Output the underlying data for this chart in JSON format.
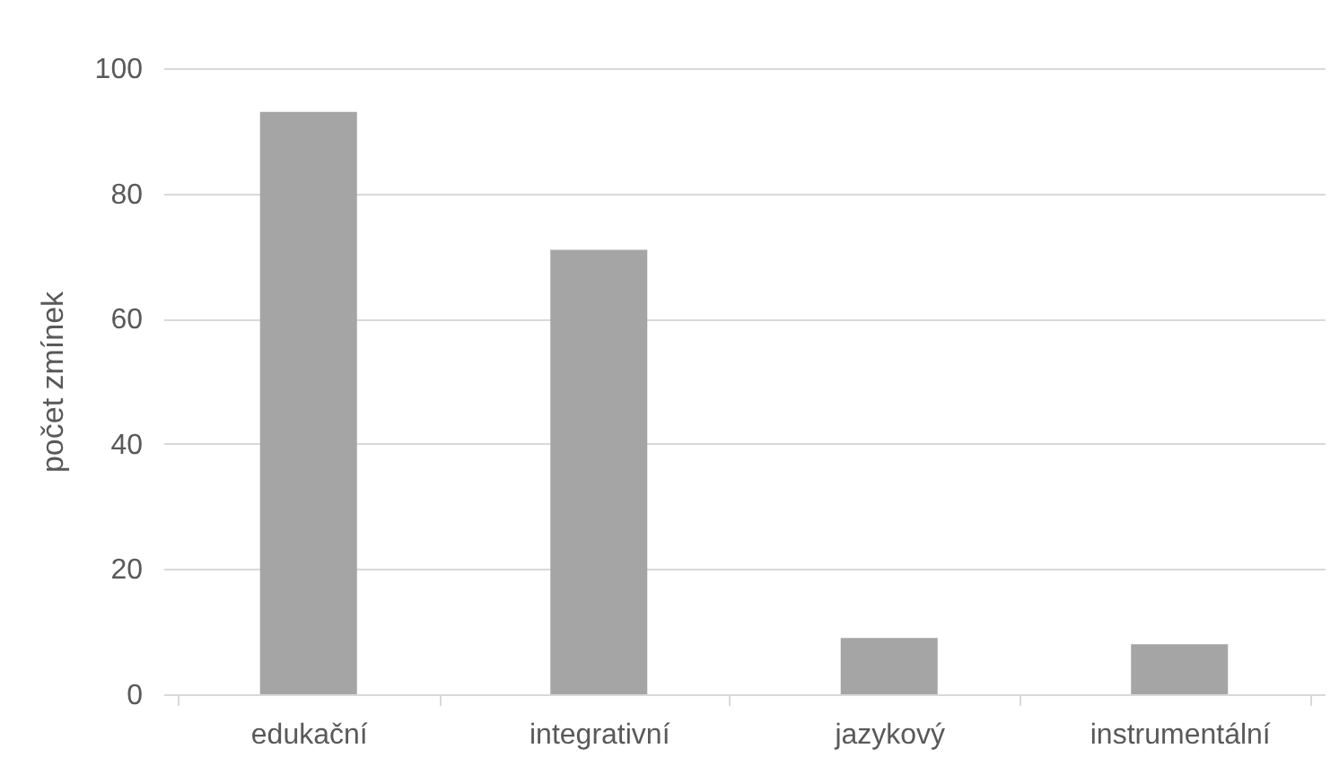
{
  "chart_data": {
    "type": "bar",
    "ylabel": "počet zmínek",
    "categories": [
      "edukační",
      "integrativní",
      "jazykový",
      "instrumentální"
    ],
    "values": [
      93,
      71,
      9,
      8
    ],
    "color": "#a5a5a5",
    "ylim": [
      0,
      100
    ],
    "yticks": [
      0,
      20,
      40,
      60,
      80,
      100
    ],
    "grid": "y"
  }
}
